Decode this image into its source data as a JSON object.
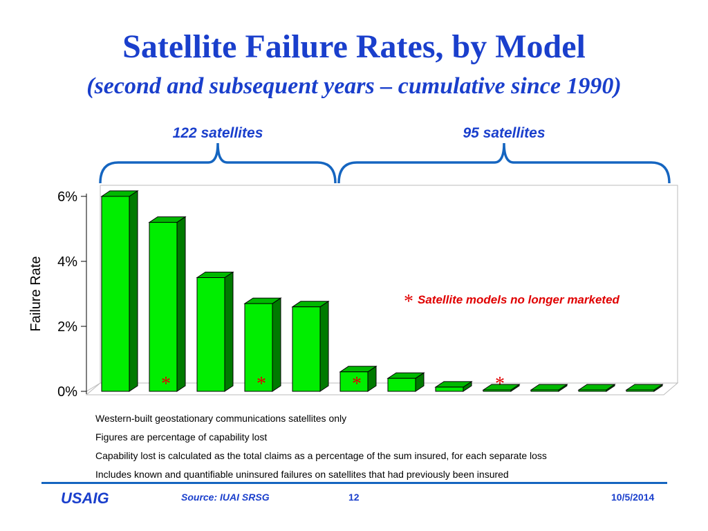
{
  "slide": {
    "title": "Satellite Failure Rates, by Model",
    "subtitle": "(second and subsequent years – cumulative since 1990)"
  },
  "groups": [
    {
      "label": "122 satellites",
      "first_index": 0,
      "last_index": 4
    },
    {
      "label": "95 satellites",
      "first_index": 5,
      "last_index": 11
    }
  ],
  "chart_data": {
    "type": "bar",
    "title": "",
    "xlabel": "",
    "ylabel": "Failure Rate",
    "ylim": [
      0,
      6
    ],
    "yticks": [
      0,
      2,
      4,
      6
    ],
    "ytick_labels": [
      "0%",
      "2%",
      "4%",
      "6%"
    ],
    "categories": [
      "",
      "",
      "",
      "",
      "",
      "",
      "",
      "",
      "",
      "",
      "",
      ""
    ],
    "values": [
      6.0,
      5.2,
      3.5,
      2.7,
      2.6,
      0.6,
      0.4,
      0.13,
      0.03,
      0.03,
      0.03,
      0.03
    ],
    "no_longer_marketed": [
      false,
      true,
      false,
      true,
      false,
      true,
      false,
      false,
      true,
      false,
      false,
      false
    ],
    "legend": {
      "marker": "*",
      "text": "Satellite models no longer marketed"
    },
    "grid": false,
    "colors": {
      "bar_front": "#00ee00",
      "bar_side": "#007a00",
      "bar_top": "#00b800",
      "asterisk": "#e00000",
      "bracket": "#1565c0",
      "group_label": "#1a3fcc"
    }
  },
  "notes": [
    "Western-built geostationary communications satellites only",
    "Figures are percentage of capability lost",
    "Capability lost is calculated as the total claims as a percentage of the sum insured, for each separate loss",
    "Includes known and quantifiable uninsured failures on satellites that had previously been insured"
  ],
  "footer": {
    "logo": "USAIG",
    "source": "Source: IUAI SRSG",
    "page": "12",
    "date": "10/5/2014"
  }
}
